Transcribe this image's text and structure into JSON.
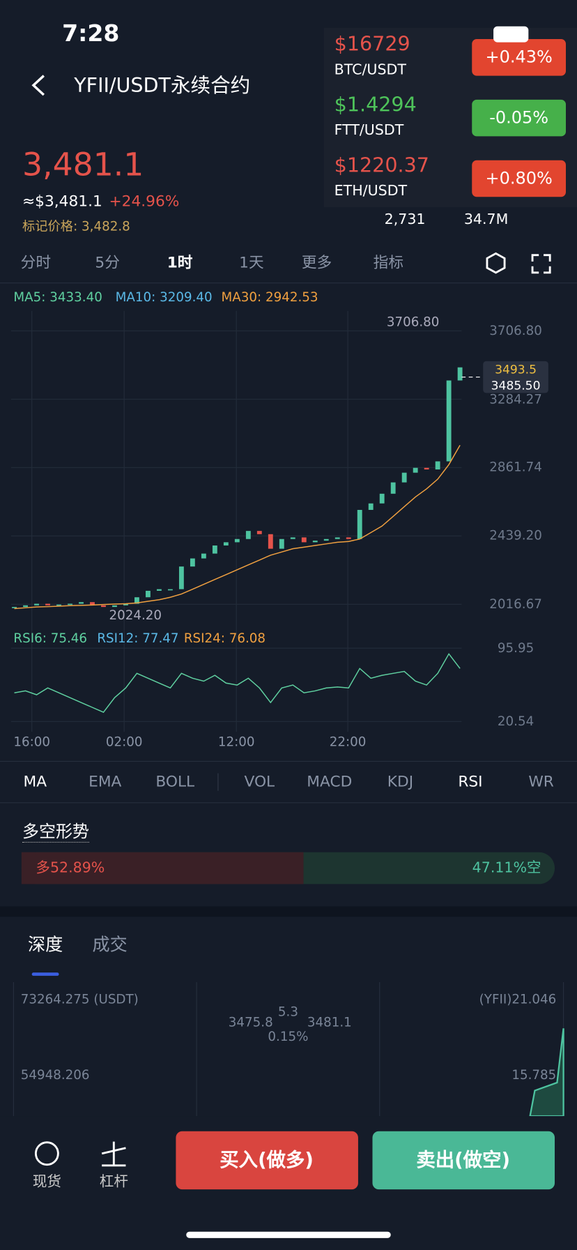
{
  "status_bar": {
    "time": "7:28"
  },
  "header": {
    "title": "YFII/USDT永续合约"
  },
  "price": {
    "last": "3,481.1",
    "usd": "≈$3,481.1",
    "change": "+24.96%",
    "mark": "标记价格: 3,482.8"
  },
  "stats": {
    "low": "2,731",
    "volume": "34.7M"
  },
  "tickers": [
    {
      "price": "$16729",
      "pair": "BTC/USDT",
      "change": "+0.43%"
    },
    {
      "price": "$1.4294",
      "pair": "FTT/USDT",
      "change": "-0.05%"
    },
    {
      "price": "$1220.37",
      "pair": "ETH/USDT",
      "change": "+0.80%"
    }
  ],
  "tabs": [
    "分时",
    "5分",
    "1时",
    "1天",
    "更多",
    "指标"
  ],
  "ma_legend": [
    "MA5: 3433.40",
    "MA10: 3209.40",
    "MA30: 2942.53"
  ],
  "kline": {
    "yticks": [
      {
        "value": 2016.67,
        "label": "2016.67"
      },
      {
        "value": 2439.2,
        "label": "2439.20"
      },
      {
        "value": 2861.74,
        "label": "2861.74"
      },
      {
        "value": 3284.27,
        "label": "3284.27"
      },
      {
        "value": 3706.8,
        "label": "3706.80"
      }
    ],
    "ylim": [
      2016.67,
      3706.8
    ],
    "high_label": "3706.80",
    "low_label": "2024.20",
    "price_tag": "3493.5",
    "mark_tag": "3485.50",
    "close": [
      2000,
      2010,
      2020,
      2010,
      2015,
      2020,
      2030,
      2010,
      2000,
      2010,
      2020,
      2060,
      2100,
      2110,
      2110,
      2250,
      2300,
      2330,
      2380,
      2400,
      2420,
      2470,
      2450,
      2360,
      2420,
      2430,
      2400,
      2410,
      2420,
      2430,
      2420,
      2600,
      2640,
      2700,
      2770,
      2830,
      2860,
      2850,
      2900,
      3400,
      3481
    ],
    "ma30": [
      1990,
      1995,
      2000,
      2002,
      2005,
      2008,
      2010,
      2012,
      2015,
      2018,
      2020,
      2025,
      2035,
      2045,
      2060,
      2080,
      2110,
      2140,
      2170,
      2200,
      2230,
      2260,
      2290,
      2320,
      2340,
      2360,
      2370,
      2380,
      2390,
      2400,
      2405,
      2420,
      2460,
      2500,
      2560,
      2620,
      2680,
      2730,
      2790,
      2880,
      3000
    ],
    "time_labels": [
      "16:00",
      "02:00",
      "12:00",
      "22:00"
    ]
  },
  "rsi": {
    "legend": [
      "RSI6: 75.46",
      "RSI12: 77.47",
      "RSI24: 76.08"
    ],
    "yticks": [
      20.54,
      95.95
    ],
    "ylim": [
      20.54,
      95.95
    ],
    "rsi6": [
      50,
      52,
      48,
      55,
      50,
      45,
      40,
      35,
      30,
      45,
      55,
      70,
      65,
      60,
      55,
      70,
      65,
      62,
      68,
      60,
      58,
      65,
      55,
      40,
      55,
      58,
      50,
      52,
      55,
      56,
      55,
      75,
      65,
      68,
      70,
      72,
      62,
      58,
      70,
      90,
      75
    ]
  },
  "indicator_tabs": [
    "MA",
    "EMA",
    "BOLL",
    "VOL",
    "MACD",
    "KDJ",
    "RSI",
    "WR"
  ],
  "sentiment": {
    "title": "多空形势",
    "long_label": "多52.89%",
    "short_label": "47.11%空",
    "long": 52.89
  },
  "depth": {
    "tabs": [
      "深度",
      "成交"
    ],
    "left_top": "73264.275 (USDT)",
    "left_mid": "54948.206",
    "right_top": "(YFII)21.046",
    "right_mid": "15.785",
    "bid": "3475.8",
    "spread": "5.3",
    "ask": "3481.1",
    "spread_pct": "0.15%"
  },
  "bottom": {
    "spot": "现货",
    "margin": "杠杆",
    "buy": "买入(做多)",
    "sell": "卖出(做空)"
  }
}
